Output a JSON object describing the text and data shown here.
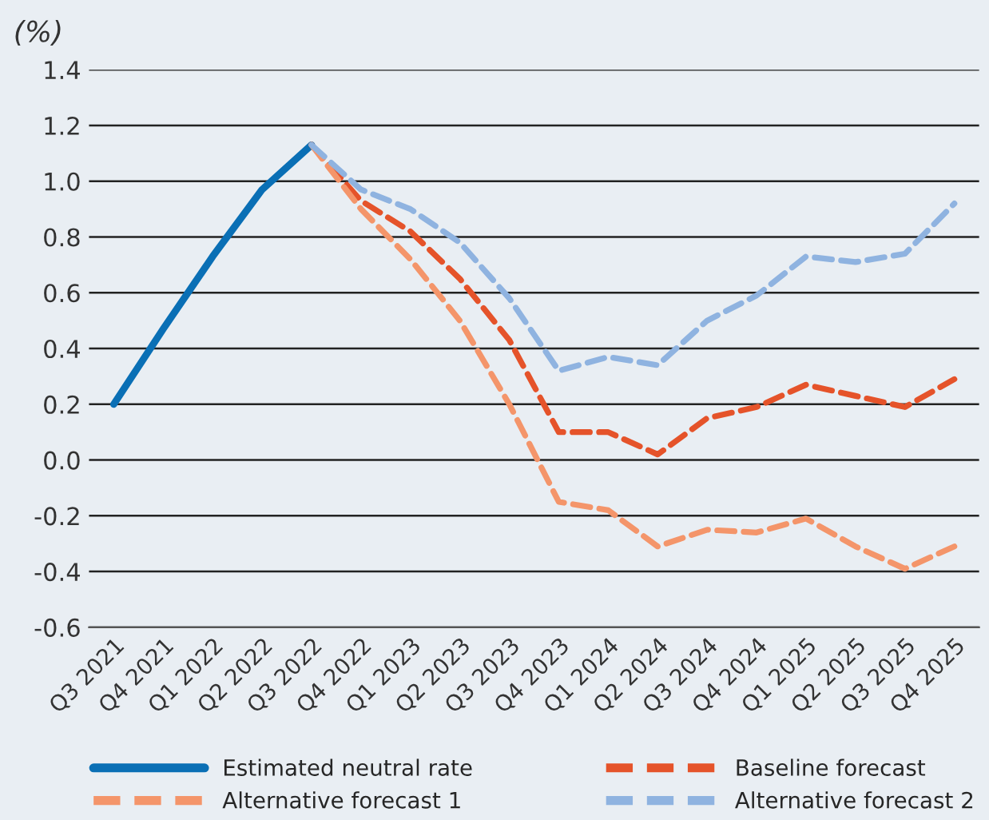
{
  "chart_data": {
    "type": "line",
    "ylabel": "(%)",
    "categories": [
      "Q3 2021",
      "Q4 2021",
      "Q1 2022",
      "Q2 2022",
      "Q3 2022",
      "Q4 2022",
      "Q1 2023",
      "Q2 2023",
      "Q3 2023",
      "Q4 2023",
      "Q1 2024",
      "Q2 2024",
      "Q3 2024",
      "Q4 2024",
      "Q1 2025",
      "Q2 2025",
      "Q3 2025",
      "Q4 2025"
    ],
    "series": [
      {
        "name": "Estimated neutral rate",
        "color": "#0a6fb5",
        "line_style": "solid",
        "values": [
          0.2,
          0.47,
          0.73,
          0.97,
          1.13,
          null,
          null,
          null,
          null,
          null,
          null,
          null,
          null,
          null,
          null,
          null,
          null,
          null
        ]
      },
      {
        "name": "Baseline forecast",
        "color": "#e5532a",
        "line_style": "dashed",
        "values": [
          null,
          null,
          null,
          null,
          1.13,
          0.93,
          0.82,
          0.65,
          0.43,
          0.1,
          0.1,
          0.02,
          0.15,
          0.19,
          0.27,
          0.23,
          0.19,
          0.29
        ]
      },
      {
        "name": "Alternative forecast 1",
        "color": "#f4956a",
        "line_style": "dashed",
        "values": [
          null,
          null,
          null,
          null,
          1.13,
          0.9,
          0.72,
          0.5,
          0.2,
          -0.15,
          -0.18,
          -0.31,
          -0.25,
          -0.26,
          -0.21,
          -0.31,
          -0.39,
          -0.31
        ]
      },
      {
        "name": "Alternative forecast 2",
        "color": "#8fb3e0",
        "line_style": "dashed",
        "values": [
          null,
          null,
          null,
          null,
          1.13,
          0.97,
          0.9,
          0.78,
          0.58,
          0.32,
          0.37,
          0.34,
          0.5,
          0.59,
          0.73,
          0.71,
          0.74,
          0.92
        ]
      }
    ],
    "ylim": [
      -0.6,
      1.4
    ],
    "yticks": [
      {
        "value": -0.6,
        "label": "-0.6"
      },
      {
        "value": -0.4,
        "label": "-0.4"
      },
      {
        "value": -0.2,
        "label": "-0.2"
      },
      {
        "value": 0,
        "label": "0.0"
      },
      {
        "value": 0.2,
        "label": "0.2"
      },
      {
        "value": 0.4,
        "label": "0.4"
      },
      {
        "value": 0.6,
        "label": "0.6"
      },
      {
        "value": 0.8,
        "label": "0.8"
      },
      {
        "value": 1.0,
        "label": "1.0"
      },
      {
        "value": 1.2,
        "label": "1.2"
      },
      {
        "value": 1.4,
        "label": "1.4"
      }
    ],
    "grid": "y",
    "legend": "bottom",
    "marker": "none"
  }
}
